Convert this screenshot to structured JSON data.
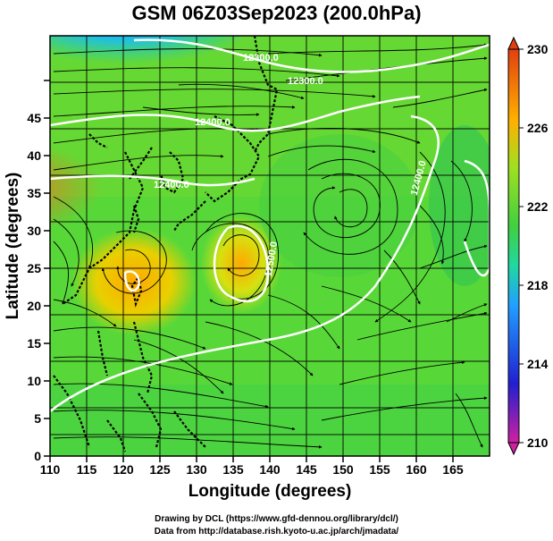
{
  "title": "GSM 06Z03Sep2023 (200.0hPa)",
  "axes": {
    "x_label": "Longitude (degrees)",
    "y_label": "Latitude  (degrees)",
    "x_ticks": [
      "110",
      "115",
      "120",
      "125",
      "130",
      "135",
      "140",
      "145",
      "150",
      "155",
      "160",
      "165"
    ],
    "y_ticks": [
      "0",
      "5",
      "10",
      "15",
      "20",
      "25",
      "30",
      "35",
      "40",
      "45"
    ],
    "x_range": [
      110,
      170
    ],
    "y_range": [
      0,
      50
    ]
  },
  "colorbar": {
    "labels": [
      "230",
      "226",
      "222",
      "218",
      "214",
      "210"
    ],
    "range": [
      210,
      230
    ],
    "colors": [
      "#d020a0",
      "#2020d0",
      "#20a0ff",
      "#20d8a0",
      "#40d040",
      "#a0e020",
      "#ffb000",
      "#e04010"
    ]
  },
  "contour_labels": [
    "12300.0",
    "12300.0",
    "12400.0",
    "12400.0",
    "12400.0",
    "12500.0"
  ],
  "credits": [
    "Drawing by DCL (https://www.gfd-dennou.org/library/dcl/)",
    "Data from http://database.rish.kyoto-u.ac.jp/arch/jmadata/"
  ]
}
